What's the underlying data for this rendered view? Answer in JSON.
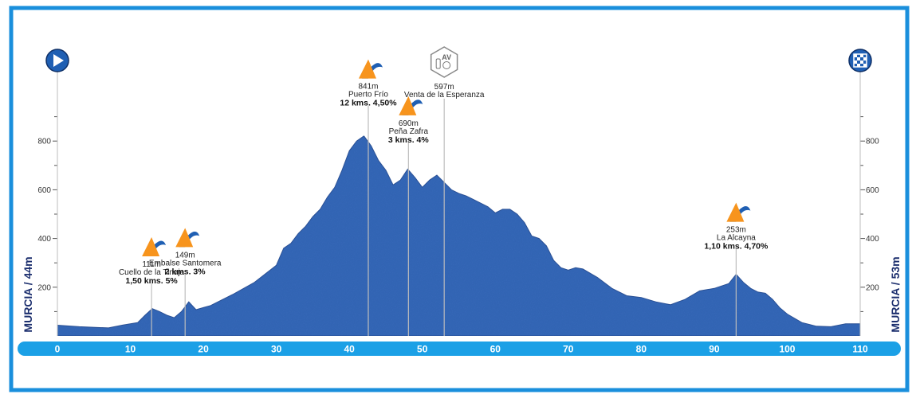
{
  "colors": {
    "border": "#1a8fdc",
    "profile": "#3467b8",
    "profile_edge": "#2a5298",
    "axis_bar": "#1ba0e6",
    "climb_orange": "#f7941d",
    "climb_blue": "#1f5fb3",
    "marker_line": "#bdbdbd",
    "icon_circle": "#1f5fb3"
  },
  "chart_data": {
    "type": "area",
    "title": "",
    "xlabel": "",
    "ylabel": "",
    "xlim": [
      0,
      110
    ],
    "ylim": [
      0,
      1000
    ],
    "x_ticks": [
      "0",
      "10",
      "20",
      "30",
      "40",
      "50",
      "60",
      "70",
      "80",
      "90",
      "100",
      "110"
    ],
    "x_tick_values": [
      0,
      10,
      20,
      30,
      40,
      50,
      60,
      70,
      80,
      90,
      100,
      110
    ],
    "y_ticks": [
      "200",
      "400",
      "600",
      "800"
    ],
    "y_tick_values": [
      200,
      400,
      600,
      800
    ],
    "left_label": "MURCIA / 44m",
    "right_label": "MURCIA / 53m",
    "start_icon": "play-icon",
    "finish_icon": "checkered-flag-icon",
    "profile": {
      "x": [
        0,
        3,
        7,
        9,
        11,
        12,
        13,
        14,
        15,
        16,
        17,
        18,
        19,
        21,
        24,
        27,
        30,
        31,
        32,
        33,
        34,
        35,
        36,
        37,
        38,
        39,
        40,
        41,
        42,
        43,
        44,
        45,
        46,
        47,
        48,
        49,
        50,
        51,
        52,
        53,
        54,
        55,
        56,
        57,
        58,
        59,
        60,
        61,
        62,
        63,
        64,
        65,
        66,
        67,
        68,
        69,
        70,
        71,
        72,
        74,
        76,
        78,
        80,
        82,
        84,
        86,
        88,
        90,
        92,
        93,
        94,
        95,
        96,
        97,
        98,
        99,
        100,
        102,
        104,
        106,
        108,
        110
      ],
      "y": [
        44,
        38,
        33,
        45,
        55,
        85,
        112,
        100,
        85,
        75,
        100,
        140,
        108,
        125,
        170,
        220,
        290,
        360,
        380,
        420,
        450,
        490,
        520,
        570,
        610,
        680,
        760,
        800,
        821,
        780,
        720,
        680,
        620,
        640,
        685,
        650,
        610,
        640,
        660,
        630,
        600,
        585,
        575,
        560,
        545,
        530,
        505,
        520,
        520,
        500,
        465,
        410,
        400,
        370,
        310,
        280,
        270,
        280,
        275,
        240,
        195,
        165,
        158,
        140,
        128,
        150,
        185,
        195,
        215,
        253,
        220,
        195,
        180,
        175,
        150,
        115,
        90,
        55,
        40,
        38,
        50,
        50
      ]
    },
    "climbs": [
      {
        "km": 12.9,
        "altitude": 111,
        "label": "111m",
        "name": "Cuello de la Tinaja",
        "detail": "1,50 kms. 5%"
      },
      {
        "km": 17.5,
        "altitude": 149,
        "label": "149m",
        "name": "Embalse Santomera",
        "detail": "2 kms. 3%"
      },
      {
        "km": 42.6,
        "altitude": 841,
        "label": "841m",
        "name": "Puerto Frío",
        "detail": "12 kms. 4,50%"
      },
      {
        "km": 48.1,
        "altitude": 690,
        "label": "690m",
        "name": "Peña Zafra",
        "detail": "3 kms.  4%"
      },
      {
        "km": 93.0,
        "altitude": 253,
        "label": "253m",
        "name": "La Alcayna",
        "detail": "1,10 kms. 4,70%"
      }
    ],
    "feed_zone": {
      "km": 53.0,
      "altitude": 597,
      "label": "597m",
      "name": "Venta de la Esperanza",
      "badge": "AV",
      "icon": "feed-zone-hexagon-icon"
    }
  }
}
